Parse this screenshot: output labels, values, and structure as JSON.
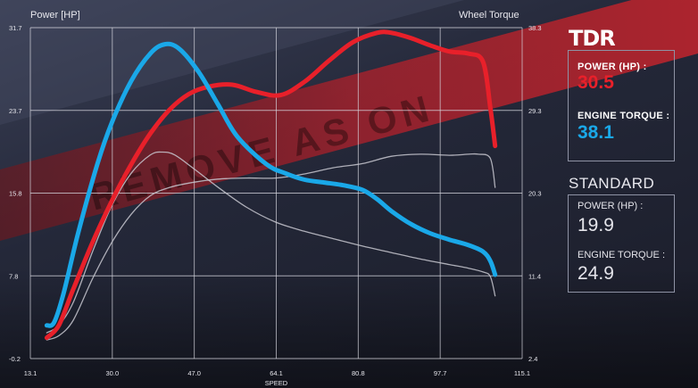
{
  "brand": "TDR",
  "watermark": "REMOVE AS ON",
  "colors": {
    "power": "#e8202a",
    "torque": "#1aa8e8",
    "standard": "#c8c8d0",
    "band": "#a01a20"
  },
  "tdr": {
    "power_label": "POWER (HP) :",
    "power_value": "30.5",
    "torque_label": "ENGINE TORQUE :",
    "torque_value": "38.1"
  },
  "standard": {
    "title": "STANDARD",
    "power_label": "POWER (HP) :",
    "power_value": "19.9",
    "torque_label": "ENGINE TORQUE :",
    "torque_value": "24.9"
  },
  "chart_data": {
    "type": "line",
    "ylabel_left": "Power [HP]",
    "ylabel_right": "Wheel Torque",
    "xlabel": "SPEED",
    "x_ticks": [
      "13.1",
      "30.0",
      "47.0",
      "64.1",
      "80.8",
      "97.7",
      "115.1"
    ],
    "y_left_ticks": [
      "-0.2",
      "7.8",
      "15.8",
      "23.7",
      "31.7"
    ],
    "y_right_ticks": [
      "2.4",
      "11.4",
      "20.3",
      "29.3",
      "38.3"
    ],
    "xlim": [
      13.1,
      115.1
    ],
    "ylim_left": [
      -0.2,
      31.7
    ],
    "ylim_right": [
      2.4,
      38.3
    ],
    "grid": true,
    "series": [
      {
        "name": "TDR Power",
        "axis": "left",
        "style": "bold",
        "color": "#e8202a",
        "x": [
          16.5,
          19,
          22,
          26,
          30,
          34,
          38,
          42,
          46,
          50,
          55,
          60,
          65,
          70,
          75,
          80,
          85,
          88,
          92,
          96,
          100,
          104,
          107,
          108.5,
          109.5
        ],
        "y": [
          1.8,
          3,
          6.5,
          11,
          15,
          18.5,
          21.5,
          23.8,
          25.3,
          26,
          26.2,
          25.5,
          25.2,
          26.5,
          28.5,
          30.3,
          31.2,
          31.2,
          30.7,
          30,
          29.4,
          29.2,
          28.4,
          24,
          20.3
        ]
      },
      {
        "name": "TDR Torque",
        "axis": "right",
        "style": "bold",
        "color": "#1aa8e8",
        "x": [
          16.5,
          18,
          20,
          23,
          27,
          30,
          34,
          38,
          41,
          44,
          48,
          52,
          56,
          62,
          66,
          70,
          74,
          78,
          82,
          85,
          88,
          92,
          96,
          100,
          104,
          107,
          108.5,
          109.5
        ],
        "y": [
          6,
          6.3,
          9.5,
          16,
          23.5,
          28,
          32.5,
          35.5,
          36.5,
          36,
          33.5,
          30,
          26.5,
          23.5,
          22.5,
          21.8,
          21.5,
          21.2,
          20.7,
          19.7,
          18.4,
          17,
          16,
          15.3,
          14.7,
          14,
          13,
          11.5
        ]
      },
      {
        "name": "Standard Power",
        "axis": "left",
        "style": "thin",
        "color": "#c8c8d0",
        "x": [
          16.5,
          19,
          22,
          26,
          30,
          34,
          38,
          42,
          47,
          52,
          58,
          64,
          70,
          76,
          82,
          88,
          94,
          100,
          104,
          106,
          108.5,
          109.5
        ],
        "y": [
          1.6,
          2,
          3.5,
          7.5,
          11,
          13.7,
          15.5,
          16.3,
          16.8,
          17.1,
          17.2,
          17.2,
          17.6,
          18.2,
          18.6,
          19.3,
          19.5,
          19.4,
          19.5,
          19.5,
          19.1,
          16.3
        ]
      },
      {
        "name": "Standard Torque",
        "axis": "right",
        "style": "thin",
        "color": "#c8c8d0",
        "x": [
          16.5,
          19,
          22,
          26,
          30,
          34,
          38,
          40.5,
          43,
          47,
          52,
          58,
          64,
          70,
          76,
          82,
          88,
          94,
          100,
          104,
          107,
          108.5,
          109.5
        ],
        "y": [
          5.2,
          6,
          8.5,
          14,
          19,
          22.5,
          24.5,
          24.8,
          24.5,
          23,
          21,
          18.8,
          17.2,
          16.2,
          15.4,
          14.6,
          13.9,
          13.2,
          12.6,
          12.2,
          11.8,
          11.3,
          9.2
        ]
      }
    ]
  }
}
